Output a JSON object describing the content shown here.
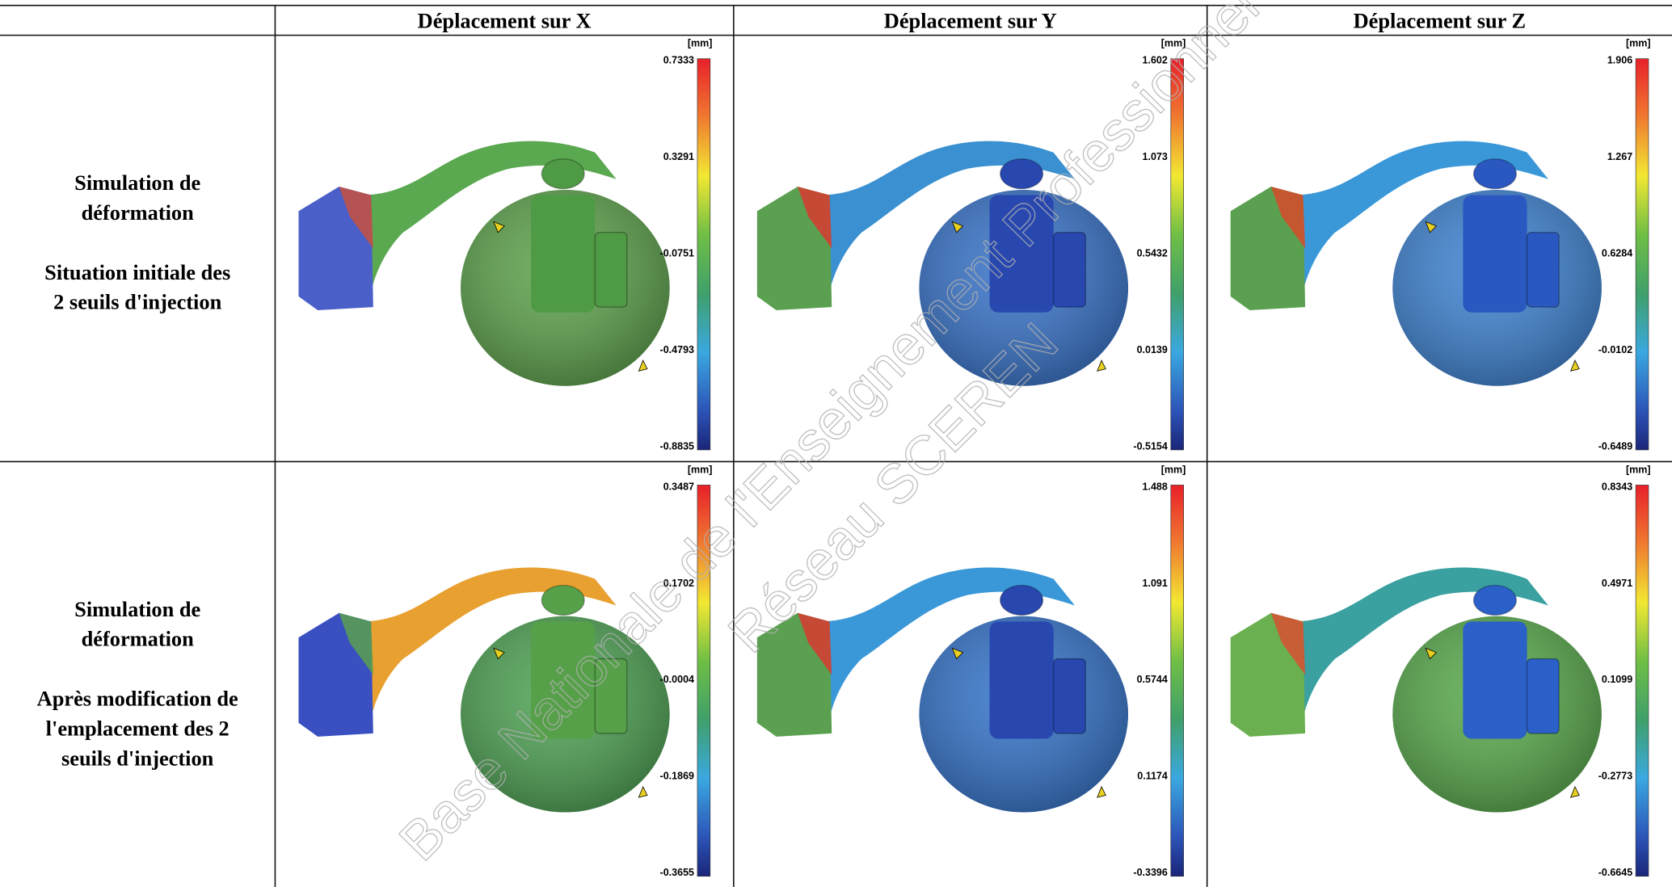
{
  "header": {
    "columns": [
      "Déplacement sur X",
      "Déplacement sur Y",
      "Déplacement sur Z"
    ]
  },
  "rows": [
    {
      "title": [
        "Simulation de",
        "déformation"
      ],
      "subtitle": [
        "Situation initiale des",
        "2 seuils d'injection"
      ],
      "cells": [
        {
          "unit": "[mm]",
          "scale": [
            "0.7333",
            "0.3291",
            "-0.0751",
            "-0.4793",
            "-0.8835"
          ]
        },
        {
          "unit": "[mm]",
          "scale": [
            "1.602",
            "1.073",
            "0.5432",
            "0.0139",
            "-0.5154"
          ]
        },
        {
          "unit": "[mm]",
          "scale": [
            "1.906",
            "1.267",
            "0.6284",
            "-0.0102",
            "-0.6489"
          ]
        }
      ]
    },
    {
      "title": [
        "Simulation de",
        "déformation"
      ],
      "subtitle": [
        "Après modification de",
        "l'emplacement des 2",
        "seuils d'injection"
      ],
      "cells": [
        {
          "unit": "[mm]",
          "scale": [
            "0.3487",
            "0.1702",
            "-0.0004",
            "-0.1869",
            "-0.3655"
          ]
        },
        {
          "unit": "[mm]",
          "scale": [
            "1.488",
            "1.091",
            "0.5744",
            "0.1174",
            "-0.3396"
          ]
        },
        {
          "unit": "[mm]",
          "scale": [
            "0.8343",
            "0.4971",
            "0.1099",
            "-0.2773",
            "-0.6645"
          ]
        }
      ]
    }
  ],
  "watermark": [
    "Base Nationale de l'Enseignement Professionnel",
    "Réseau SCEREN"
  ]
}
